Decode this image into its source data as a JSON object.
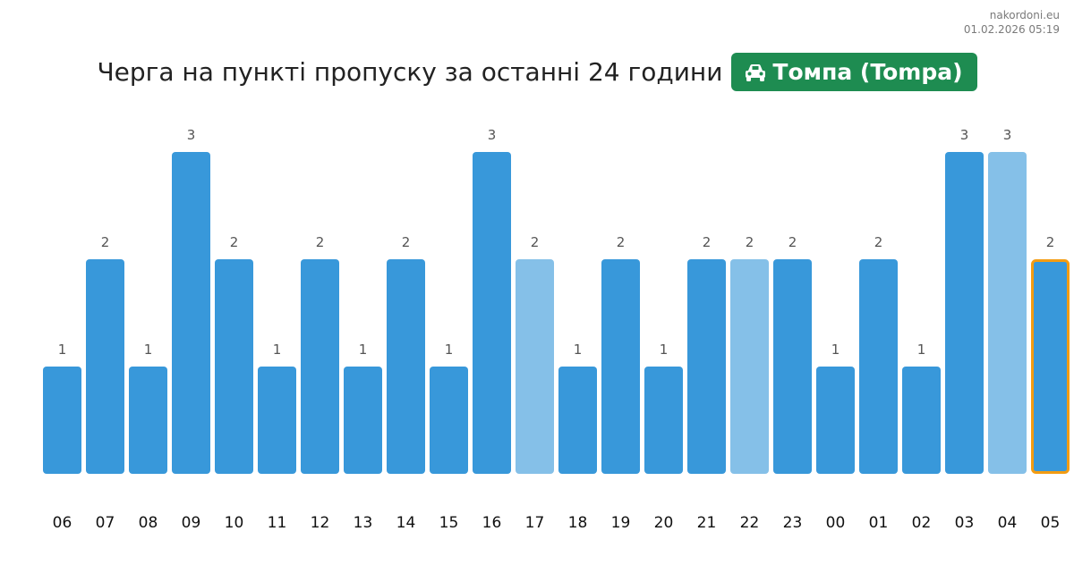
{
  "site": {
    "name": "nakordoni.eu",
    "timestamp": "01.02.2026 05:19"
  },
  "header": {
    "title": "Черга на пункті пропуску за останні 24 години",
    "crossing_label": "Томпа (Tompa)",
    "crossing_icon": "car-icon"
  },
  "colors": {
    "bar": "#3898da",
    "bar_light": "#85c0e8",
    "highlight_border": "#f39c12",
    "badge": "#1e8c51",
    "label": "#555555"
  },
  "chart_data": {
    "type": "bar",
    "categories": [
      "06",
      "07",
      "08",
      "09",
      "10",
      "11",
      "12",
      "13",
      "14",
      "15",
      "16",
      "17",
      "18",
      "19",
      "20",
      "21",
      "22",
      "23",
      "00",
      "01",
      "02",
      "03",
      "04",
      "05"
    ],
    "values": [
      1,
      2,
      1,
      3,
      2,
      1,
      2,
      1,
      2,
      1,
      3,
      2,
      1,
      2,
      1,
      2,
      2,
      2,
      1,
      2,
      1,
      3,
      3,
      2
    ],
    "light_bars": [
      "17",
      "22",
      "04"
    ],
    "highlighted": "05",
    "ylim": [
      0,
      3
    ]
  }
}
